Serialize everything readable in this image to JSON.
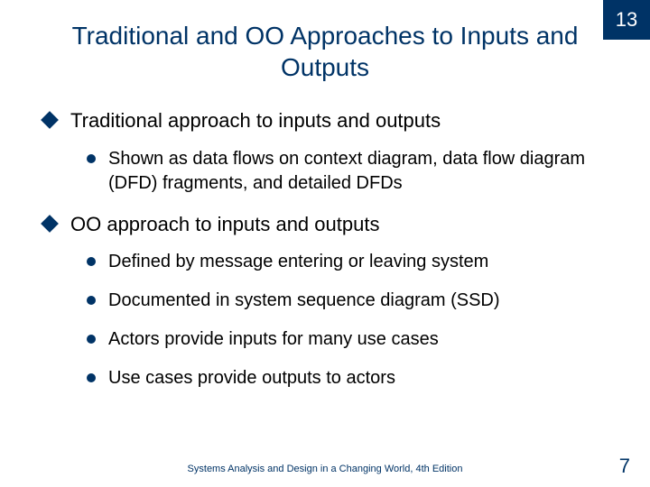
{
  "chapter_number": "13",
  "title": "Traditional and OO Approaches to Inputs and Outputs",
  "bullets": [
    {
      "text": "Traditional approach to inputs and outputs",
      "sub": [
        "Shown as data flows on context diagram, data flow diagram (DFD) fragments, and detailed DFDs"
      ]
    },
    {
      "text": "OO approach to inputs and outputs",
      "sub": [
        "Defined by message entering or leaving system",
        "Documented in system sequence diagram (SSD)",
        "Actors provide inputs for many use cases",
        "Use cases provide outputs to actors"
      ]
    }
  ],
  "footer_text": "Systems Analysis and Design in a Changing World, 4th Edition",
  "page_number": "7",
  "colors": {
    "brand": "#003366",
    "text": "#000000",
    "background": "#ffffff"
  }
}
